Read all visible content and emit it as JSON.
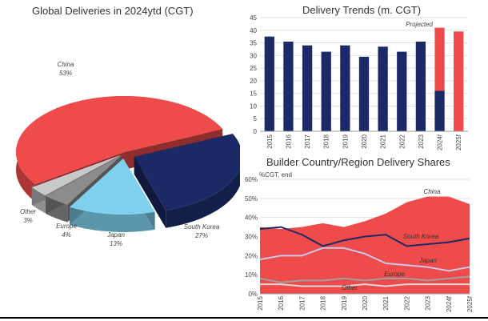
{
  "chart_data": [
    {
      "type": "pie",
      "title": "Global Deliveries in 2024ytd (CGT)",
      "slices": [
        {
          "label": "China",
          "value": 53,
          "value_label": "53%",
          "color": "#ef4b4b"
        },
        {
          "label": "South Korea",
          "value": 27,
          "value_label": "27%",
          "color": "#1b2a66"
        },
        {
          "label": "Japan",
          "value": 13,
          "value_label": "13%",
          "color": "#7fd0ee"
        },
        {
          "label": "Europe",
          "value": 4,
          "value_label": "4%",
          "color": "#8c8c8c"
        },
        {
          "label": "Other",
          "value": 3,
          "value_label": "3%",
          "color": "#c8c8c8"
        }
      ]
    },
    {
      "type": "bar",
      "title": "Delivery Trends (m. CGT)",
      "annotation": "Projected",
      "categories": [
        "2015",
        "2016",
        "2017",
        "2018",
        "2019",
        "2020",
        "2021",
        "2022",
        "2023",
        "2024f",
        "2025f"
      ],
      "ylim": [
        0,
        45
      ],
      "yticks": [
        0,
        5,
        10,
        15,
        20,
        25,
        30,
        35,
        40,
        45
      ],
      "series": [
        {
          "values": [
            37.5,
            35.5,
            34,
            31.5,
            34,
            29.5,
            33.5,
            31.5,
            35.5,
            16,
            0
          ],
          "color": "#1b2a66"
        },
        {
          "values": [
            0,
            0,
            0,
            0,
            0,
            0,
            0,
            0,
            0,
            25,
            39.5
          ],
          "color": "#ef4b4b"
        }
      ]
    },
    {
      "type": "area",
      "title": "Builder Country/Region Delivery Shares",
      "ylabel": "%CGT, end",
      "x": [
        "2015",
        "2016",
        "2017",
        "2018",
        "2019",
        "2020",
        "2021",
        "2022",
        "2023",
        "2024f",
        "2025f"
      ],
      "ylim": [
        0,
        60
      ],
      "yticks": [
        "0%",
        "10%",
        "20%",
        "30%",
        "40%",
        "50%",
        "60%"
      ],
      "series": [
        {
          "name": "China",
          "type": "area",
          "color": "#ef4b4b",
          "values": [
            35,
            34,
            35,
            37,
            35,
            38,
            42,
            48,
            51,
            51,
            47
          ]
        },
        {
          "name": "South Korea",
          "type": "line",
          "color": "#1b2a66",
          "values": [
            34,
            35,
            31,
            25,
            28,
            30,
            31,
            25,
            26,
            27,
            29
          ]
        },
        {
          "name": "Japan",
          "type": "line",
          "color": "#c9c6ea",
          "values": [
            18,
            20,
            20,
            24,
            24,
            21,
            16,
            15,
            14,
            12,
            14
          ]
        },
        {
          "name": "Europe",
          "type": "line",
          "color": "#a0a0a0",
          "values": [
            8,
            6,
            7,
            7,
            8,
            7,
            8,
            8,
            7,
            8,
            9
          ]
        },
        {
          "name": "Other",
          "type": "line",
          "color": "#d9d9d9",
          "values": [
            5,
            5,
            4,
            4,
            4,
            5,
            4,
            5,
            5,
            5,
            5
          ]
        }
      ]
    }
  ]
}
